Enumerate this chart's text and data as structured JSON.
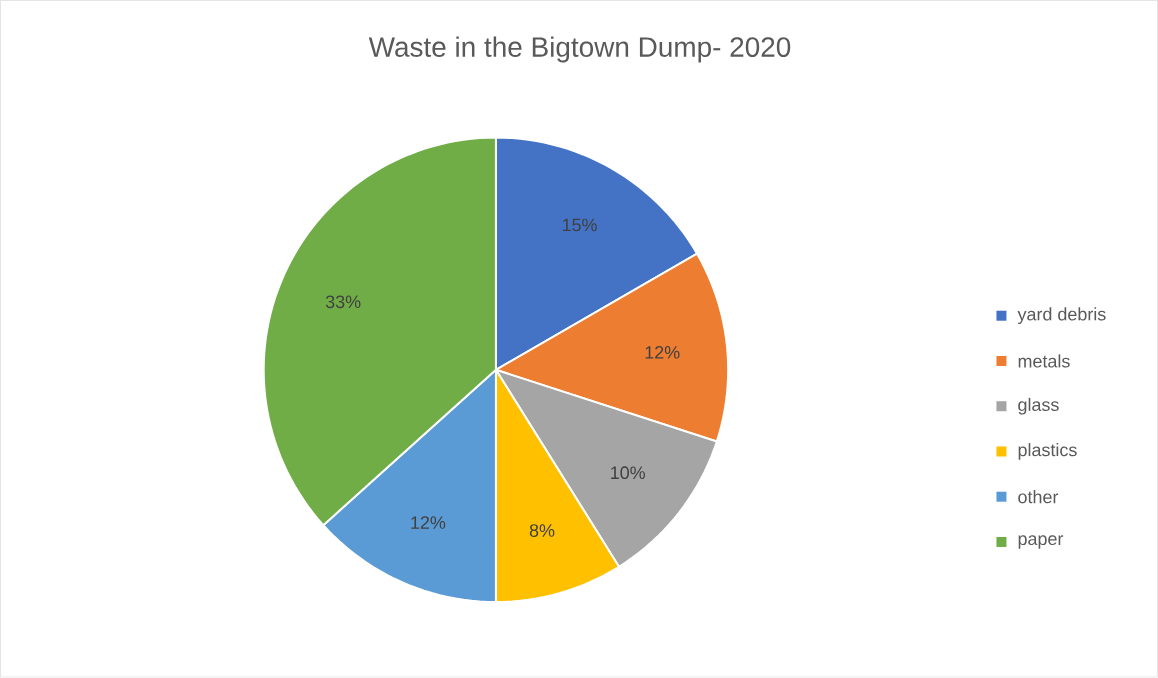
{
  "chart_data": {
    "type": "pie",
    "title": "Waste in the Bigtown Dump- 2020",
    "categories": [
      "yard debris",
      "metals",
      "glass",
      "plastics",
      "other",
      "paper"
    ],
    "values": [
      15,
      12,
      10,
      8,
      12,
      33
    ],
    "colors": [
      "#4472c4",
      "#ed7d31",
      "#a5a5a5",
      "#ffc000",
      "#5b9bd5",
      "#70ad47"
    ],
    "value_labels": [
      "15%",
      "12%",
      "10%",
      "8%",
      "12%",
      "33%"
    ],
    "legend": "right"
  }
}
